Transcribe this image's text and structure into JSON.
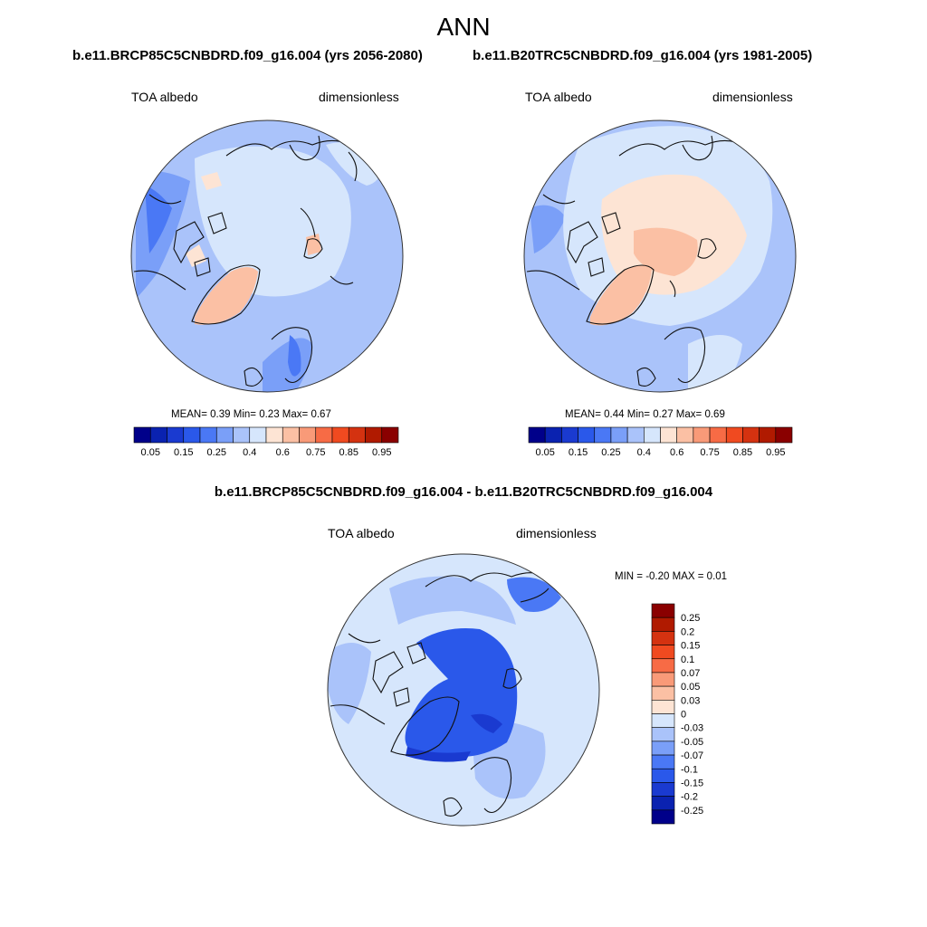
{
  "title": "ANN",
  "panels": [
    {
      "id": "case",
      "title": "b.e11.BRCP85C5CNBDRD.f09_g16.004 (yrs 2056-2080)",
      "variable": "TOA albedo",
      "units": "dimensionless",
      "stats": {
        "mean_label": "MEAN=",
        "mean": "0.39",
        "min_label": "Min=",
        "min": "0.23",
        "max_label": "Max=",
        "max": "0.67"
      }
    },
    {
      "id": "control",
      "title": "b.e11.B20TRC5CNBDRD.f09_g16.004 (yrs 1981-2005)",
      "variable": "TOA albedo",
      "units": "dimensionless",
      "stats": {
        "mean_label": "MEAN=",
        "mean": "0.44",
        "min_label": "Min=",
        "min": "0.27",
        "max_label": "Max=",
        "max": "0.69"
      }
    }
  ],
  "abs_colorbar": {
    "ticks": [
      "0.05",
      "0.15",
      "0.25",
      "0.4",
      "0.6",
      "0.75",
      "0.85",
      "0.95"
    ],
    "colors": [
      "#00008a",
      "#0a22b0",
      "#1a3ad0",
      "#2a58ea",
      "#4a78f5",
      "#7a9ff8",
      "#aac3fa",
      "#d6e6fc",
      "#fde4d4",
      "#fbc0a4",
      "#f99a78",
      "#f76b45",
      "#f04a20",
      "#d43210",
      "#b01a00",
      "#8a0000"
    ]
  },
  "difference": {
    "title": "b.e11.BRCP85C5CNBDRD.f09_g16.004 - b.e11.B20TRC5CNBDRD.f09_g16.004",
    "variable": "TOA albedo",
    "units": "dimensionless",
    "min_label": "MIN =",
    "min": "-0.20",
    "max_label": "MAX =",
    "max": "0.01",
    "colorbar": {
      "ticks": [
        "0.25",
        "0.2",
        "0.15",
        "0.1",
        "0.07",
        "0.05",
        "0.03",
        "0",
        "-0.03",
        "-0.05",
        "-0.07",
        "-0.1",
        "-0.15",
        "-0.2",
        "-0.25"
      ],
      "colors": [
        "#8a0000",
        "#b01a00",
        "#d43210",
        "#f04a20",
        "#f76b45",
        "#f99a78",
        "#fbc0a4",
        "#fde4d4",
        "#d6e6fc",
        "#aac3fa",
        "#7a9ff8",
        "#4a78f5",
        "#2a58ea",
        "#1a3ad0",
        "#0a22b0",
        "#00008a"
      ]
    }
  }
}
